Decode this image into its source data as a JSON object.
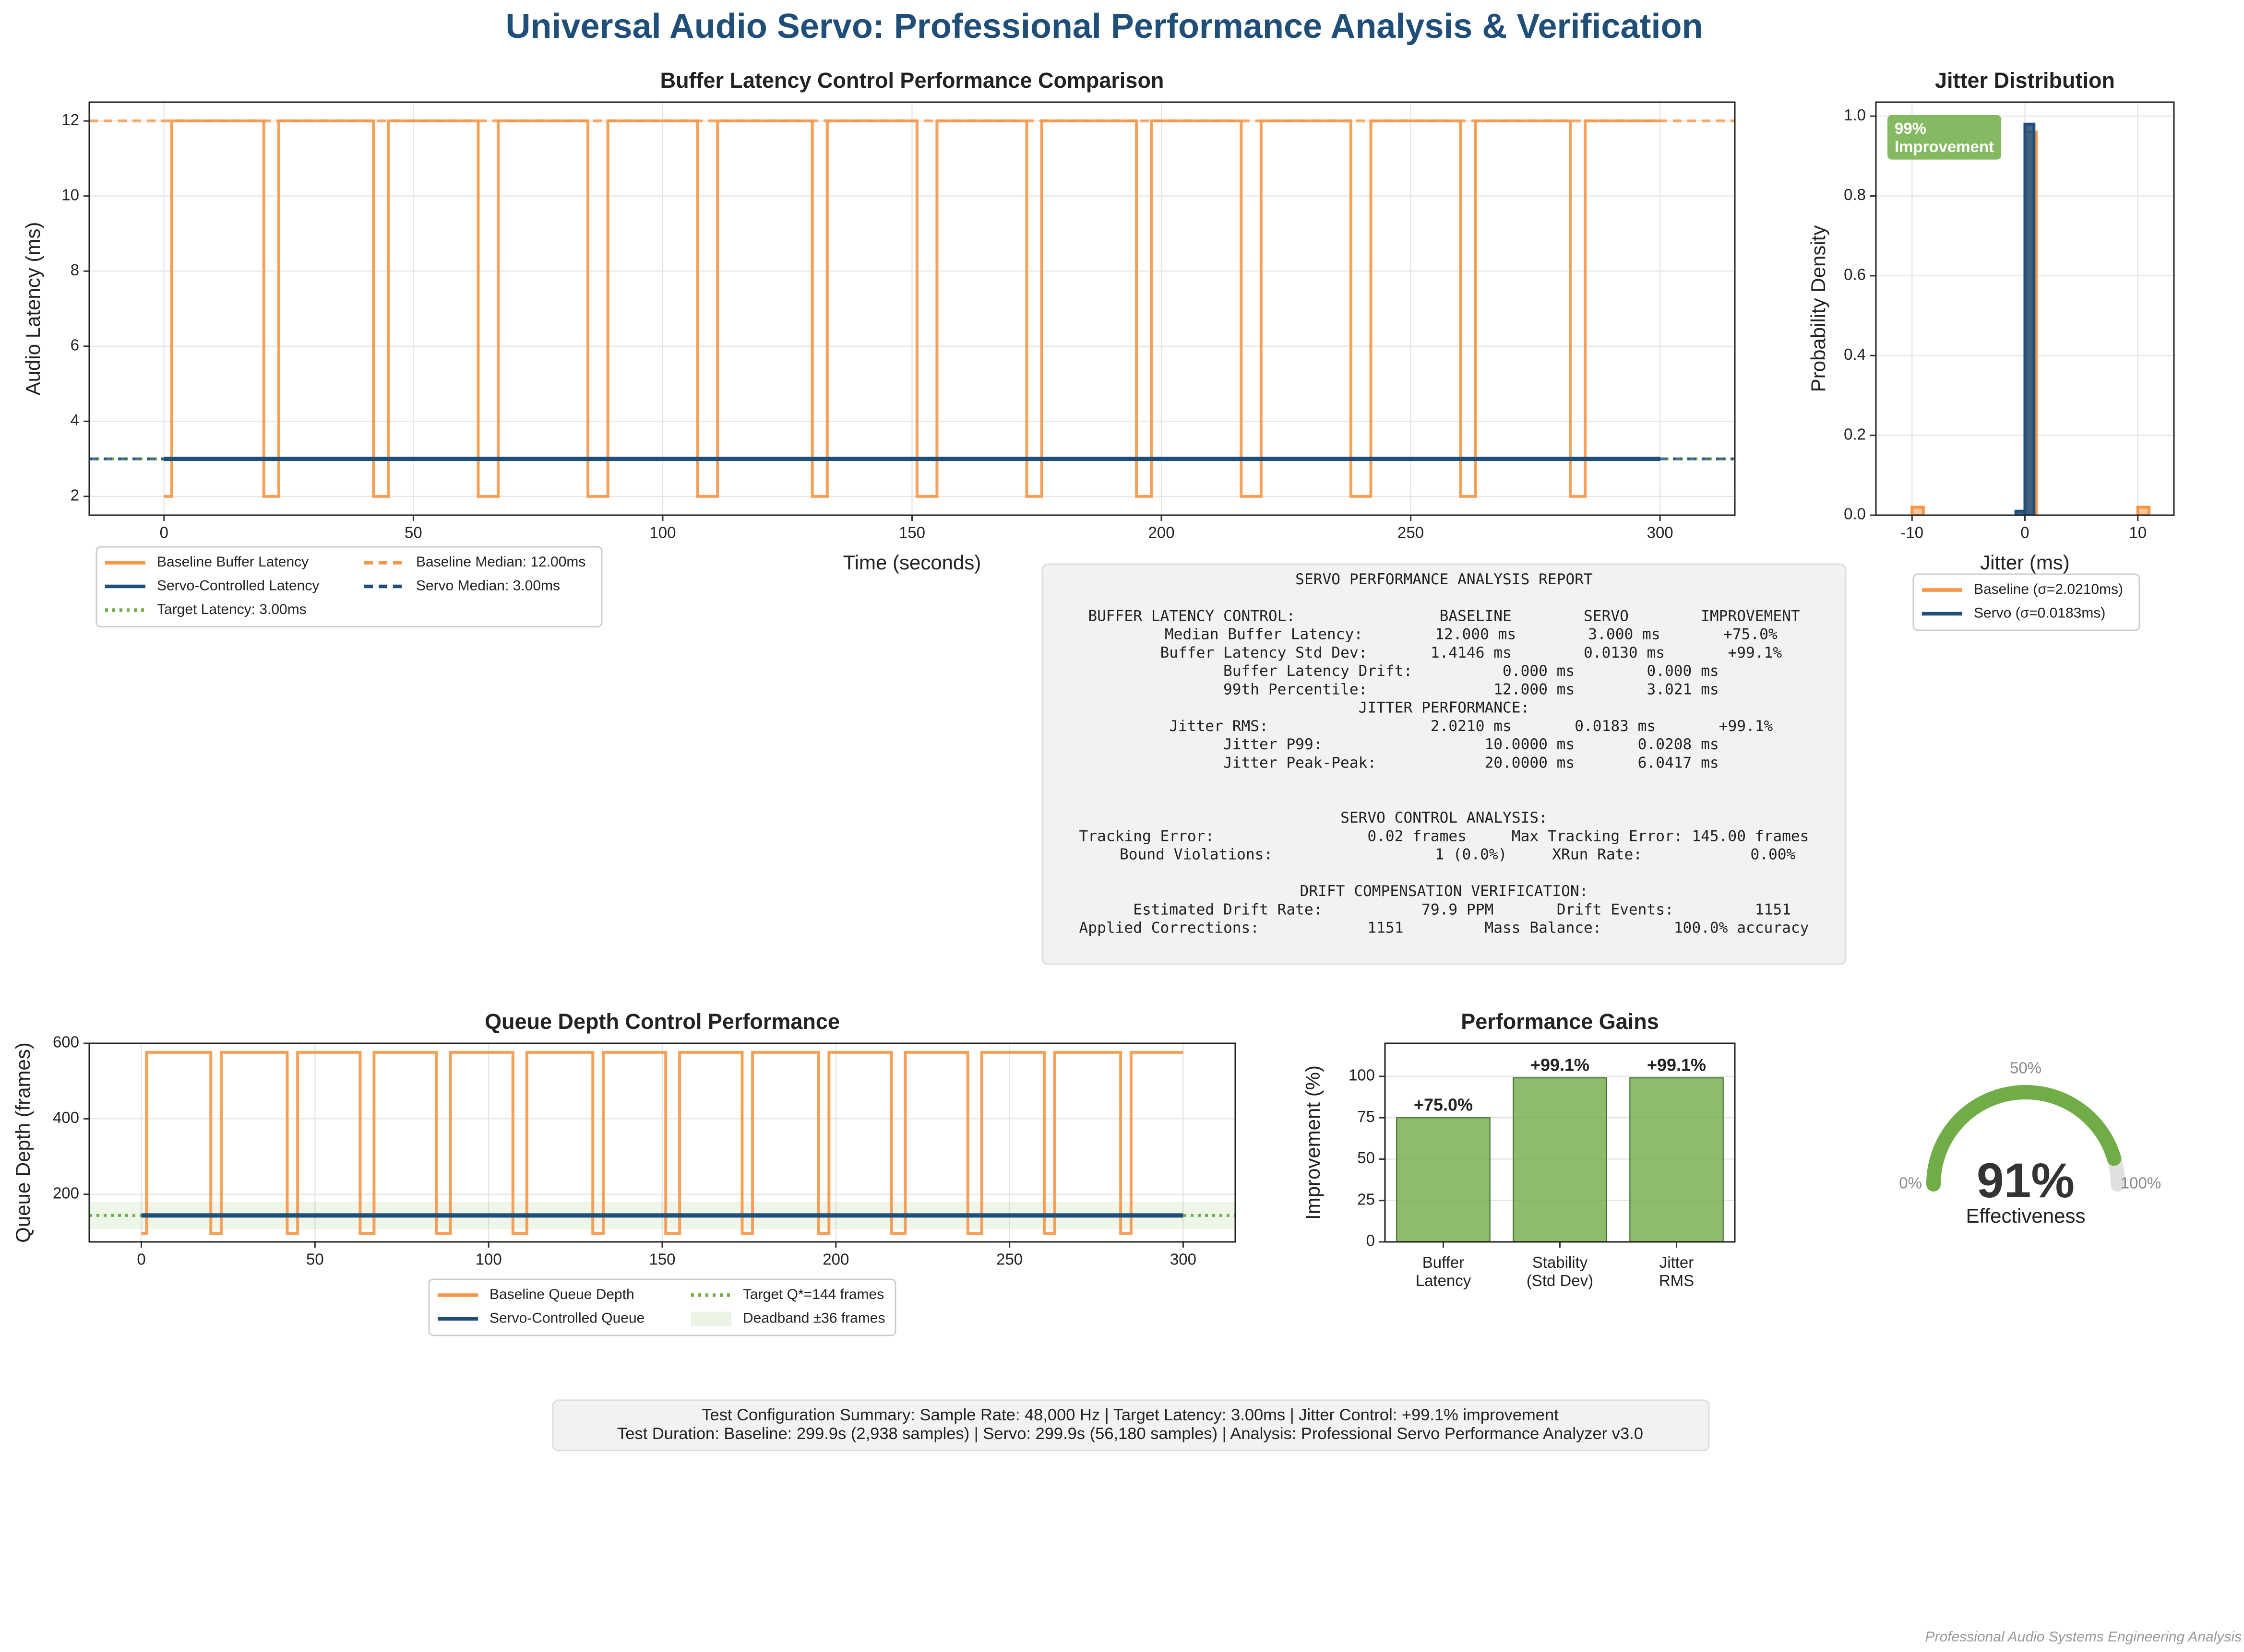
{
  "title": "Universal Audio Servo: Professional Performance Analysis & Verification",
  "chart_data": [
    {
      "type": "line",
      "title": "Buffer Latency Control Performance Comparison",
      "x_label": "Time (seconds)",
      "y_label": "Audio Latency (ms)",
      "xlim": [
        -15,
        315
      ],
      "ylim": [
        1.5,
        12.5
      ],
      "xticks": [
        0,
        50,
        100,
        150,
        200,
        250,
        300
      ],
      "yticks": [
        2,
        4,
        6,
        8,
        10,
        12
      ],
      "grid": true,
      "legend": "below",
      "series": [
        {
          "name": "Baseline Buffer Latency",
          "color": "#f79646",
          "style": "solid",
          "x": [
            0,
            1.5,
            1.5,
            20,
            20,
            23,
            23,
            42,
            42,
            45,
            45,
            63,
            63,
            67,
            67,
            85,
            85,
            89,
            89,
            107,
            107,
            111,
            111,
            130,
            130,
            133,
            133,
            151,
            151,
            155,
            155,
            173,
            173,
            176,
            176,
            195,
            195,
            198,
            198,
            216,
            216,
            220,
            220,
            238,
            238,
            242,
            242,
            260,
            260,
            263,
            263,
            282,
            282,
            285,
            285,
            300
          ],
          "values": [
            2,
            2,
            12,
            12,
            2,
            2,
            12,
            12,
            2,
            2,
            12,
            12,
            2,
            2,
            12,
            12,
            2,
            2,
            12,
            12,
            2,
            2,
            12,
            12,
            2,
            2,
            12,
            12,
            2,
            2,
            12,
            12,
            2,
            2,
            12,
            12,
            2,
            2,
            12,
            12,
            2,
            2,
            12,
            12,
            2,
            2,
            12,
            12,
            2,
            2,
            12,
            12,
            2,
            2,
            12,
            12
          ]
        },
        {
          "name": "Servo-Controlled Latency",
          "color": "#1f4e79",
          "style": "solid",
          "x": [
            0,
            300
          ],
          "values": [
            3,
            3
          ]
        }
      ],
      "reference_lines": [
        {
          "name": "Target Latency: 3.00ms",
          "color": "#70ad47",
          "style": "dotted",
          "value": 3
        },
        {
          "name": "Baseline Median: 12.00ms",
          "color": "#f79646",
          "style": "dashed",
          "value": 12
        },
        {
          "name": "Servo Median: 3.00ms",
          "color": "#1f4e79",
          "style": "dashed",
          "value": 3
        }
      ]
    },
    {
      "type": "histogram",
      "title": "Jitter Distribution",
      "x_label": "Jitter (ms)",
      "y_label": "Probability Density",
      "xlim": [
        -13.2,
        13.2
      ],
      "ylim": [
        0,
        1.035
      ],
      "xticks": [
        -10,
        0,
        10
      ],
      "yticks": [
        {
          "value": 0,
          "label": "0.0"
        },
        {
          "value": 0.2,
          "label": "0.2"
        },
        {
          "value": 0.4,
          "label": "0.4"
        },
        {
          "value": 0.6,
          "label": "0.6"
        },
        {
          "value": 0.8,
          "label": "0.8"
        },
        {
          "value": 1,
          "label": "1.0"
        }
      ],
      "grid": true,
      "legend": "below",
      "annotation": "99%\nImprovement",
      "series": [
        {
          "name": "Baseline (σ=2.0210ms)",
          "color": "#f79646",
          "bins": [
            -10,
            -9,
            -8,
            -7,
            -6,
            -5,
            -4,
            -3,
            -2,
            -1,
            0,
            1,
            2,
            3,
            4,
            5,
            6,
            7,
            8,
            9,
            10,
            11
          ],
          "values": [
            0.02,
            0,
            0,
            0,
            0,
            0,
            0,
            0,
            0,
            0,
            0.96,
            0,
            0,
            0,
            0,
            0,
            0,
            0,
            0,
            0,
            0.02
          ]
        },
        {
          "name": "Servo (σ=0.0183ms)",
          "color": "#1f4e79",
          "bins": [
            -0.8,
            0,
            0.8
          ],
          "values": [
            0.01,
            0.98
          ]
        }
      ]
    },
    {
      "type": "line",
      "title": "Queue Depth Control Performance",
      "x_label": "Time (seconds)",
      "y_label": "Queue Depth (frames)",
      "xlim": [
        -15,
        315
      ],
      "ylim": [
        74,
        600
      ],
      "xticks": [
        0,
        50,
        100,
        150,
        200,
        250,
        300
      ],
      "yticks": [
        200,
        400,
        600
      ],
      "grid": true,
      "legend": "below",
      "series": [
        {
          "name": "Baseline Queue Depth",
          "color": "#f79646",
          "style": "solid",
          "x": [
            0,
            1.5,
            1.5,
            20,
            20,
            23,
            23,
            42,
            42,
            45,
            45,
            63,
            63,
            67,
            67,
            85,
            85,
            89,
            89,
            107,
            107,
            111,
            111,
            130,
            130,
            133,
            133,
            151,
            151,
            155,
            155,
            173,
            173,
            176,
            176,
            195,
            195,
            198,
            198,
            216,
            216,
            220,
            220,
            238,
            238,
            242,
            242,
            260,
            260,
            263,
            263,
            282,
            282,
            285,
            285,
            300
          ],
          "values": [
            96,
            96,
            576,
            576,
            96,
            96,
            576,
            576,
            96,
            96,
            576,
            576,
            96,
            96,
            576,
            576,
            96,
            96,
            576,
            576,
            96,
            96,
            576,
            576,
            96,
            96,
            576,
            576,
            96,
            96,
            576,
            576,
            96,
            96,
            576,
            576,
            96,
            96,
            576,
            576,
            96,
            96,
            576,
            576,
            96,
            96,
            576,
            576,
            96,
            96,
            576,
            576,
            96,
            96,
            576,
            576
          ]
        },
        {
          "name": "Servo-Controlled Queue",
          "color": "#1f4e79",
          "style": "solid",
          "x": [
            0,
            300
          ],
          "values": [
            144,
            144
          ]
        }
      ],
      "reference_lines": [
        {
          "name": "Target Q*=144 frames",
          "color": "#70ad47",
          "style": "dotted",
          "value": 144
        }
      ],
      "bands": [
        {
          "name": "Deadband ±36 frames",
          "color": "#70ad47",
          "range": [
            108,
            180
          ]
        }
      ]
    },
    {
      "type": "bar",
      "title": "Performance Gains",
      "y_label": "Improvement (%)",
      "categories": [
        "Buffer\nLatency",
        "Stability\n(Std Dev)",
        "Jitter\nRMS"
      ],
      "values": [
        75.0,
        99.1,
        99.1
      ],
      "value_labels": [
        "+75.0%",
        "+99.1%",
        "+99.1%"
      ],
      "color": "#70ad47",
      "ylim": [
        0,
        120
      ],
      "yticks": [
        0,
        25,
        50,
        75,
        100
      ],
      "grid": true
    },
    {
      "type": "gauge",
      "value": 91,
      "value_label": "91%",
      "label": "Effectiveness",
      "color": "#70ad47",
      "ticks": [
        {
          "value": 0,
          "label": "0%"
        },
        {
          "value": 50,
          "label": "50%"
        },
        {
          "value": 100,
          "label": "100%"
        }
      ]
    }
  ],
  "report": {
    "sections": [
      [
        "SERVO PERFORMANCE ANALYSIS REPORT"
      ],
      [
        "BUFFER LATENCY CONTROL:                BASELINE        SERVO        IMPROVEMENT",
        "      Median Buffer Latency:        12.000 ms        3.000 ms       +75.0%",
        "      Buffer Latency Std Dev:       1.4146 ms        0.0130 ms       +99.1%",
        "      Buffer Latency Drift:          0.000 ms        0.000 ms",
        "      99th Percentile:              12.000 ms        3.021 ms",
        "JITTER PERFORMANCE:",
        "      Jitter RMS:                  2.0210 ms       0.0183 ms       +99.1%",
        "      Jitter P99:                  10.0000 ms       0.0208 ms",
        "      Jitter Peak-Peak:            20.0000 ms       6.0417 ms"
      ],
      [
        "SERVO CONTROL ANALYSIS:",
        "Tracking Error:                 0.02 frames     Max Tracking Error: 145.00 frames",
        "   Bound Violations:                  1 (0.0%)     XRun Rate:            0.00%"
      ],
      [
        "DRIFT COMPENSATION VERIFICATION:",
        "    Estimated Drift Rate:           79.9 PPM       Drift Events:         1151",
        "Applied Corrections:            1151         Mass Balance:        100.0% accuracy"
      ]
    ]
  },
  "summary": {
    "lines": [
      "Test Configuration Summary: Sample Rate: 48,000 Hz  |  Target Latency: 3.00ms  |  Jitter Control: +99.1% improvement",
      "Test Duration: Baseline: 299.9s (2,938 samples)  |  Servo: 299.9s (56,180 samples)  |  Analysis: Professional Servo Performance Analyzer v3.0"
    ]
  },
  "footer": "Professional Audio Systems Engineering Analysis"
}
